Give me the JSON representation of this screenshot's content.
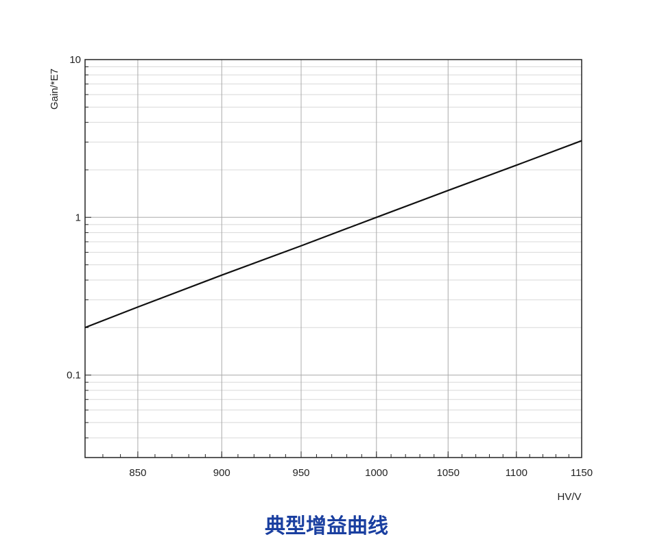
{
  "chart_data": {
    "type": "line",
    "title": "典型增益曲线",
    "x_label": "HV/V",
    "y_label": "Gain/*E7",
    "x": [
      820,
      850,
      900,
      950,
      1000,
      1050,
      1100,
      1150
    ],
    "series": [
      {
        "name": "Gain",
        "color": "#111111",
        "values": [
          0.2,
          0.27,
          0.43,
          0.66,
          1,
          1.48,
          2.14,
          3.06
        ]
      }
    ],
    "xlim": [
      820,
      1150
    ],
    "xticks": [
      850,
      900,
      950,
      1000,
      1050,
      1100,
      1150
    ],
    "ylim": [
      0.03,
      10
    ],
    "yticks": [
      0.1,
      1,
      10
    ],
    "xscale": "log",
    "yscale": "log",
    "grid": true,
    "title_color": "#1a3fa0"
  }
}
